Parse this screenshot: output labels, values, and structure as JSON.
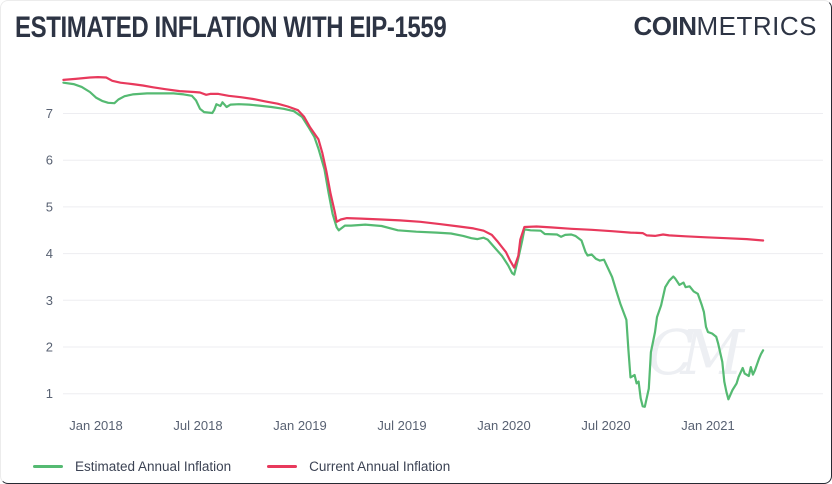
{
  "header": {
    "title": "ESTIMATED INFLATION WITH EIP-1559",
    "logo": {
      "bold": "COIN",
      "light": "METRICS"
    }
  },
  "watermark": "CM",
  "colors": {
    "estimated": "#55ba72",
    "current": "#e8395c",
    "grid": "#ededf1",
    "tick_label": "#596273",
    "title_text": "#2d3444",
    "legend_text": "#3c4354",
    "watermark": "#edeff3"
  },
  "legend": {
    "items": [
      {
        "label": "Estimated Annual Inflation",
        "color_key": "estimated"
      },
      {
        "label": "Current Annual Inflation",
        "color_key": "current"
      }
    ]
  },
  "chart_data": {
    "type": "line",
    "title": "ESTIMATED INFLATION WITH EIP-1559",
    "xlabel": "",
    "ylabel": "",
    "grid": "horizontal",
    "legend_position": "bottom-left",
    "x_unit": "decimal_year",
    "xlim": [
      2017.84,
      2021.29
    ],
    "ylim": [
      0.45,
      8.05
    ],
    "y_ticks": [
      1,
      2,
      3,
      4,
      5,
      6,
      7
    ],
    "x_ticks": [
      {
        "t": 2018.0,
        "label": "Jan 2018"
      },
      {
        "t": 2018.5,
        "label": "Jul 2018"
      },
      {
        "t": 2019.0,
        "label": "Jan 2019"
      },
      {
        "t": 2019.5,
        "label": "Jul 2019"
      },
      {
        "t": 2020.0,
        "label": "Jan 2020"
      },
      {
        "t": 2020.5,
        "label": "Jul 2020"
      },
      {
        "t": 2021.0,
        "label": "Jan 2021"
      }
    ],
    "series": [
      {
        "name": "Estimated Annual Inflation",
        "color_key": "estimated",
        "points": [
          [
            2017.84,
            7.66
          ],
          [
            2017.89,
            7.63
          ],
          [
            2017.93,
            7.57
          ],
          [
            2017.97,
            7.46
          ],
          [
            2018.0,
            7.34
          ],
          [
            2018.03,
            7.27
          ],
          [
            2018.06,
            7.23
          ],
          [
            2018.09,
            7.22
          ],
          [
            2018.11,
            7.3
          ],
          [
            2018.14,
            7.37
          ],
          [
            2018.18,
            7.41
          ],
          [
            2018.25,
            7.43
          ],
          [
            2018.32,
            7.43
          ],
          [
            2018.38,
            7.43
          ],
          [
            2018.43,
            7.41
          ],
          [
            2018.47,
            7.38
          ],
          [
            2018.49,
            7.28
          ],
          [
            2018.51,
            7.1
          ],
          [
            2018.53,
            7.03
          ],
          [
            2018.57,
            7.01
          ],
          [
            2018.58,
            7.08
          ],
          [
            2018.59,
            7.2
          ],
          [
            2018.61,
            7.16
          ],
          [
            2018.62,
            7.24
          ],
          [
            2018.64,
            7.14
          ],
          [
            2018.66,
            7.19
          ],
          [
            2018.7,
            7.2
          ],
          [
            2018.75,
            7.19
          ],
          [
            2018.8,
            7.17
          ],
          [
            2018.86,
            7.14
          ],
          [
            2018.92,
            7.1
          ],
          [
            2018.97,
            7.05
          ],
          [
            2019.01,
            6.93
          ],
          [
            2019.04,
            6.72
          ],
          [
            2019.07,
            6.5
          ],
          [
            2019.09,
            6.25
          ],
          [
            2019.12,
            5.8
          ],
          [
            2019.14,
            5.3
          ],
          [
            2019.16,
            4.85
          ],
          [
            2019.18,
            4.56
          ],
          [
            2019.19,
            4.5
          ],
          [
            2019.22,
            4.6
          ],
          [
            2019.25,
            4.6
          ],
          [
            2019.32,
            4.62
          ],
          [
            2019.4,
            4.59
          ],
          [
            2019.48,
            4.5
          ],
          [
            2019.57,
            4.47
          ],
          [
            2019.67,
            4.45
          ],
          [
            2019.74,
            4.43
          ],
          [
            2019.8,
            4.38
          ],
          [
            2019.84,
            4.33
          ],
          [
            2019.87,
            4.31
          ],
          [
            2019.9,
            4.34
          ],
          [
            2019.92,
            4.3
          ],
          [
            2019.95,
            4.15
          ],
          [
            2019.99,
            3.95
          ],
          [
            2020.02,
            3.75
          ],
          [
            2020.04,
            3.58
          ],
          [
            2020.05,
            3.55
          ],
          [
            2020.07,
            3.9
          ],
          [
            2020.09,
            4.3
          ],
          [
            2020.1,
            4.52
          ],
          [
            2020.13,
            4.5
          ],
          [
            2020.18,
            4.49
          ],
          [
            2020.2,
            4.42
          ],
          [
            2020.26,
            4.41
          ],
          [
            2020.28,
            4.36
          ],
          [
            2020.3,
            4.4
          ],
          [
            2020.33,
            4.41
          ],
          [
            2020.35,
            4.38
          ],
          [
            2020.38,
            4.28
          ],
          [
            2020.4,
            4.03
          ],
          [
            2020.41,
            3.96
          ],
          [
            2020.43,
            3.98
          ],
          [
            2020.45,
            3.89
          ],
          [
            2020.47,
            3.85
          ],
          [
            2020.49,
            3.87
          ],
          [
            2020.53,
            3.5
          ],
          [
            2020.55,
            3.21
          ],
          [
            2020.57,
            2.93
          ],
          [
            2020.6,
            2.58
          ],
          [
            2020.61,
            1.94
          ],
          [
            2020.62,
            1.35
          ],
          [
            2020.64,
            1.4
          ],
          [
            2020.65,
            1.22
          ],
          [
            2020.66,
            1.26
          ],
          [
            2020.67,
            0.9
          ],
          [
            2020.68,
            0.73
          ],
          [
            2020.69,
            0.72
          ],
          [
            2020.71,
            1.11
          ],
          [
            2020.72,
            1.89
          ],
          [
            2020.74,
            2.32
          ],
          [
            2020.75,
            2.64
          ],
          [
            2020.77,
            2.89
          ],
          [
            2020.79,
            3.28
          ],
          [
            2020.81,
            3.42
          ],
          [
            2020.83,
            3.51
          ],
          [
            2020.84,
            3.46
          ],
          [
            2020.86,
            3.33
          ],
          [
            2020.88,
            3.38
          ],
          [
            2020.89,
            3.28
          ],
          [
            2020.91,
            3.3
          ],
          [
            2020.93,
            3.19
          ],
          [
            2020.95,
            3.14
          ],
          [
            2020.97,
            2.89
          ],
          [
            2020.98,
            2.75
          ],
          [
            2020.99,
            2.43
          ],
          [
            2021.0,
            2.32
          ],
          [
            2021.02,
            2.29
          ],
          [
            2021.04,
            2.22
          ],
          [
            2021.05,
            2.07
          ],
          [
            2021.07,
            1.68
          ],
          [
            2021.08,
            1.26
          ],
          [
            2021.09,
            1.04
          ],
          [
            2021.1,
            0.88
          ],
          [
            2021.12,
            1.08
          ],
          [
            2021.14,
            1.22
          ],
          [
            2021.15,
            1.36
          ],
          [
            2021.17,
            1.55
          ],
          [
            2021.18,
            1.43
          ],
          [
            2021.2,
            1.38
          ],
          [
            2021.21,
            1.57
          ],
          [
            2021.22,
            1.41
          ],
          [
            2021.23,
            1.5
          ],
          [
            2021.25,
            1.75
          ],
          [
            2021.26,
            1.85
          ],
          [
            2021.27,
            1.93
          ]
        ]
      },
      {
        "name": "Current Annual Inflation",
        "color_key": "current",
        "points": [
          [
            2017.84,
            7.72
          ],
          [
            2017.9,
            7.74
          ],
          [
            2017.97,
            7.77
          ],
          [
            2018.01,
            7.78
          ],
          [
            2018.05,
            7.77
          ],
          [
            2018.08,
            7.7
          ],
          [
            2018.12,
            7.66
          ],
          [
            2018.18,
            7.63
          ],
          [
            2018.23,
            7.6
          ],
          [
            2018.28,
            7.56
          ],
          [
            2018.34,
            7.52
          ],
          [
            2018.41,
            7.48
          ],
          [
            2018.48,
            7.46
          ],
          [
            2018.51,
            7.45
          ],
          [
            2018.54,
            7.4
          ],
          [
            2018.56,
            7.42
          ],
          [
            2018.6,
            7.42
          ],
          [
            2018.65,
            7.38
          ],
          [
            2018.71,
            7.35
          ],
          [
            2018.77,
            7.31
          ],
          [
            2018.83,
            7.26
          ],
          [
            2018.89,
            7.21
          ],
          [
            2018.94,
            7.15
          ],
          [
            2018.99,
            7.07
          ],
          [
            2019.02,
            6.93
          ],
          [
            2019.05,
            6.7
          ],
          [
            2019.09,
            6.45
          ],
          [
            2019.11,
            6.15
          ],
          [
            2019.13,
            5.75
          ],
          [
            2019.15,
            5.28
          ],
          [
            2019.17,
            4.9
          ],
          [
            2019.18,
            4.68
          ],
          [
            2019.2,
            4.73
          ],
          [
            2019.23,
            4.76
          ],
          [
            2019.3,
            4.75
          ],
          [
            2019.4,
            4.73
          ],
          [
            2019.49,
            4.71
          ],
          [
            2019.59,
            4.68
          ],
          [
            2019.69,
            4.63
          ],
          [
            2019.78,
            4.58
          ],
          [
            2019.85,
            4.54
          ],
          [
            2019.9,
            4.49
          ],
          [
            2019.94,
            4.4
          ],
          [
            2019.97,
            4.25
          ],
          [
            2020.01,
            4.03
          ],
          [
            2020.03,
            3.85
          ],
          [
            2020.05,
            3.7
          ],
          [
            2020.07,
            3.95
          ],
          [
            2020.08,
            4.3
          ],
          [
            2020.1,
            4.57
          ],
          [
            2020.16,
            4.58
          ],
          [
            2020.23,
            4.56
          ],
          [
            2020.33,
            4.53
          ],
          [
            2020.43,
            4.51
          ],
          [
            2020.53,
            4.48
          ],
          [
            2020.62,
            4.45
          ],
          [
            2020.68,
            4.44
          ],
          [
            2020.7,
            4.39
          ],
          [
            2020.74,
            4.38
          ],
          [
            2020.78,
            4.41
          ],
          [
            2020.81,
            4.39
          ],
          [
            2020.89,
            4.37
          ],
          [
            2020.99,
            4.35
          ],
          [
            2021.09,
            4.33
          ],
          [
            2021.19,
            4.31
          ],
          [
            2021.27,
            4.28
          ]
        ]
      }
    ]
  }
}
